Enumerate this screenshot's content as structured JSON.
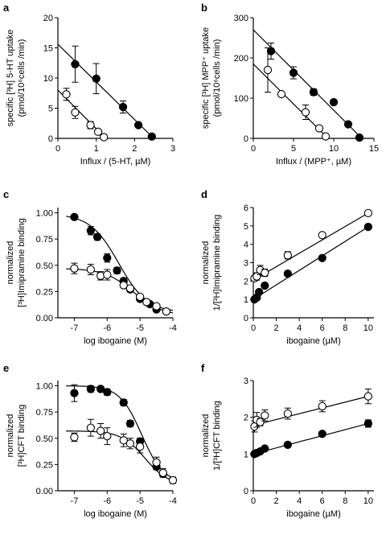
{
  "chart_data": [
    {
      "panel": "a",
      "type": "scatter",
      "xlabel": "Influx / (5-HT, µM)",
      "ylabel_lines": [
        "specific [³H] 5-HT uptake",
        "(pmol/10⁶cells /min)"
      ],
      "xlim": [
        0,
        3
      ],
      "ylim": [
        0,
        20
      ],
      "xticks": [
        0,
        1,
        2,
        3
      ],
      "yticks": [
        0,
        5,
        10,
        15,
        20
      ],
      "grid": false,
      "series": [
        {
          "marker": "filled",
          "x": [
            0.45,
            1.0,
            1.7,
            2.1,
            2.45
          ],
          "y": [
            12.3,
            9.9,
            5.2,
            2.2,
            0.3
          ],
          "err": [
            3.0,
            2.5,
            1.0,
            0.3,
            0.3
          ],
          "fit": [
            [
              0,
              15.6
            ],
            [
              2.5,
              0
            ]
          ]
        },
        {
          "marker": "open",
          "x": [
            0.22,
            0.45,
            0.85,
            1.05,
            1.2
          ],
          "y": [
            7.3,
            4.3,
            2.2,
            1.1,
            0.2
          ],
          "err": [
            1.0,
            1.0,
            0.6,
            0.3,
            0.3
          ],
          "fit": [
            [
              0,
              8.0
            ],
            [
              1.25,
              0
            ]
          ]
        }
      ]
    },
    {
      "panel": "b",
      "type": "scatter",
      "xlabel": "Influx / (MPP⁺, µM)",
      "ylabel_lines": [
        "specific [³H] MPP⁺ uptake",
        "(pmol/10⁶cells /min)"
      ],
      "xlim": [
        0,
        15
      ],
      "ylim": [
        0,
        300
      ],
      "xticks": [
        0,
        5,
        10,
        15
      ],
      "yticks": [
        0,
        100,
        200,
        300
      ],
      "grid": false,
      "series": [
        {
          "marker": "filled",
          "x": [
            2.2,
            5.0,
            7.5,
            10.0,
            11.8,
            13.2
          ],
          "y": [
            217,
            163,
            115,
            90,
            35,
            2
          ],
          "err": [
            20,
            15,
            8,
            5,
            4,
            3
          ],
          "fit": [
            [
              0,
              270
            ],
            [
              13.5,
              0
            ]
          ]
        },
        {
          "marker": "open",
          "x": [
            1.8,
            3.5,
            6.5,
            8.2,
            9.0
          ],
          "y": [
            170,
            110,
            65,
            25,
            5
          ],
          "err": [
            55,
            5,
            18,
            5,
            3
          ],
          "fit": [
            [
              0,
              185
            ],
            [
              9.3,
              0
            ]
          ]
        }
      ]
    },
    {
      "panel": "c",
      "type": "scatter",
      "xlabel": "log ibogaine (M)",
      "ylabel_lines": [
        "normalized",
        "[³H]Imipramine binding"
      ],
      "xlim": [
        -7.5,
        -4
      ],
      "ylim": [
        0,
        1.05
      ],
      "xticks": [
        -7,
        -6,
        -5,
        -4
      ],
      "yticks": [
        0.0,
        0.25,
        0.5,
        0.75,
        1.0
      ],
      "ytick_labels": [
        "0.00",
        "0.25",
        "0.50",
        "0.75",
        "1.00"
      ],
      "grid": false,
      "series": [
        {
          "marker": "filled",
          "x": [
            -7.0,
            -6.5,
            -6.3,
            -6.0,
            -5.7,
            -5.5,
            -5.3,
            -5.0,
            -4.7,
            -4.5
          ],
          "y": [
            0.96,
            0.83,
            0.77,
            0.57,
            0.45,
            0.35,
            0.27,
            0.18,
            0.13,
            0.08
          ],
          "err": [
            0.02,
            0.04,
            0.03,
            0.04,
            0.03,
            0.03,
            0.02,
            0.02,
            0.02,
            0.02
          ],
          "fit": {
            "top": 0.99,
            "bottom": 0.05,
            "logic50": -5.65,
            "hill": 1.0
          }
        },
        {
          "marker": "open",
          "x": [
            -7.0,
            -6.5,
            -6.2,
            -6.0,
            -5.5,
            -5.3,
            -5.0,
            -4.8,
            -4.5,
            -4.2
          ],
          "y": [
            0.47,
            0.46,
            0.4,
            0.41,
            0.31,
            0.28,
            0.2,
            0.15,
            0.11,
            0.06
          ],
          "err": [
            0.05,
            0.05,
            0.04,
            0.05,
            0.02,
            0.02,
            0.02,
            0.02,
            0.02,
            0.02
          ],
          "fit": {
            "top": 0.47,
            "bottom": 0.02,
            "logic50": -5.2,
            "hill": 1.0
          }
        }
      ]
    },
    {
      "panel": "d",
      "type": "scatter",
      "xlabel": "ibogaine (µM)",
      "ylabel_lines": [
        "normalized",
        "1/[³H]Imipramine binding"
      ],
      "xlim": [
        0,
        10.5
      ],
      "ylim": [
        0,
        6
      ],
      "xticks": [
        0,
        2,
        4,
        6,
        8,
        10
      ],
      "yticks": [
        0,
        1,
        2,
        3,
        4,
        5,
        6
      ],
      "grid": false,
      "series": [
        {
          "marker": "filled",
          "x": [
            0.1,
            0.3,
            0.5,
            1.0,
            3.0,
            6.0,
            10.0
          ],
          "y": [
            1.0,
            1.1,
            1.4,
            1.75,
            2.4,
            3.25,
            4.95
          ],
          "err": [
            0.05,
            0.05,
            0.05,
            0.05,
            0.05,
            0.05,
            0.05
          ],
          "fit": [
            [
              0,
              1.0
            ],
            [
              10,
              4.95
            ]
          ]
        },
        {
          "marker": "open",
          "x": [
            0.1,
            0.3,
            0.6,
            1.0,
            3.0,
            6.0,
            10.0
          ],
          "y": [
            2.15,
            2.25,
            2.6,
            2.45,
            3.4,
            4.5,
            5.7
          ],
          "err": [
            0.15,
            0.2,
            0.25,
            0.2,
            0.2,
            0.1,
            0.1
          ],
          "fit": [
            [
              0,
              2.05
            ],
            [
              10,
              5.7
            ]
          ]
        }
      ]
    },
    {
      "panel": "e",
      "type": "scatter",
      "xlabel": "log ibogaine (M)",
      "ylabel_lines": [
        "normalized",
        "[³H]CFT binding"
      ],
      "xlim": [
        -7.5,
        -4
      ],
      "ylim": [
        0,
        1.05
      ],
      "xticks": [
        -7,
        -6,
        -5,
        -4
      ],
      "yticks": [
        0.0,
        0.25,
        0.5,
        0.75,
        1.0
      ],
      "ytick_labels": [
        "0.00",
        "0.25",
        "0.50",
        "0.75",
        "1.00"
      ],
      "grid": false,
      "series": [
        {
          "marker": "filled",
          "x": [
            -7.0,
            -6.5,
            -6.2,
            -6.0,
            -5.5,
            -5.3,
            -5.0,
            -4.5,
            -4.3
          ],
          "y": [
            0.93,
            0.97,
            0.97,
            0.94,
            0.84,
            0.64,
            0.47,
            0.23,
            0.16
          ],
          "err": [
            0.08,
            0.03,
            0.02,
            0.03,
            0.03,
            0.03,
            0.03,
            0.03,
            0.03
          ],
          "fit": {
            "top": 1.0,
            "bottom": 0.07,
            "logic50": -4.95,
            "hill": 1.3
          }
        },
        {
          "marker": "open",
          "x": [
            -7.0,
            -6.5,
            -6.2,
            -6.0,
            -5.5,
            -5.3,
            -5.0,
            -4.5,
            -4.3,
            -4.0
          ],
          "y": [
            0.51,
            0.6,
            0.57,
            0.52,
            0.48,
            0.45,
            0.42,
            0.27,
            0.17,
            0.1
          ],
          "err": [
            0.04,
            0.08,
            0.07,
            0.08,
            0.06,
            0.05,
            0.06,
            0.05,
            0.04,
            0.03
          ],
          "fit": {
            "top": 0.57,
            "bottom": 0.05,
            "logic50": -4.85,
            "hill": 1.2
          }
        }
      ]
    },
    {
      "panel": "f",
      "type": "scatter",
      "xlabel": "ibogaine (µM)",
      "ylabel_lines": [
        "normalized",
        "1/[³H]CFT binding"
      ],
      "xlim": [
        0,
        10.5
      ],
      "ylim": [
        0,
        3
      ],
      "xticks": [
        0,
        2,
        4,
        6,
        8,
        10
      ],
      "yticks": [
        0,
        1,
        2,
        3
      ],
      "grid": false,
      "series": [
        {
          "marker": "filled",
          "x": [
            0.1,
            0.3,
            0.6,
            1.0,
            3.0,
            6.0,
            10.0
          ],
          "y": [
            1.0,
            1.03,
            1.07,
            1.15,
            1.25,
            1.55,
            1.83
          ],
          "err": [
            0.04,
            0.04,
            0.04,
            0.04,
            0.04,
            0.04,
            0.1
          ],
          "fit": [
            [
              0,
              1.0
            ],
            [
              10,
              1.83
            ]
          ]
        },
        {
          "marker": "open",
          "x": [
            0.1,
            0.3,
            0.6,
            1.0,
            3.0,
            6.0,
            10.0
          ],
          "y": [
            1.75,
            1.93,
            1.87,
            2.05,
            2.1,
            2.3,
            2.57
          ],
          "err": [
            0.15,
            0.2,
            0.1,
            0.15,
            0.15,
            0.15,
            0.2
          ],
          "fit": [
            [
              0,
              1.78
            ],
            [
              10,
              2.57
            ]
          ]
        }
      ]
    }
  ]
}
